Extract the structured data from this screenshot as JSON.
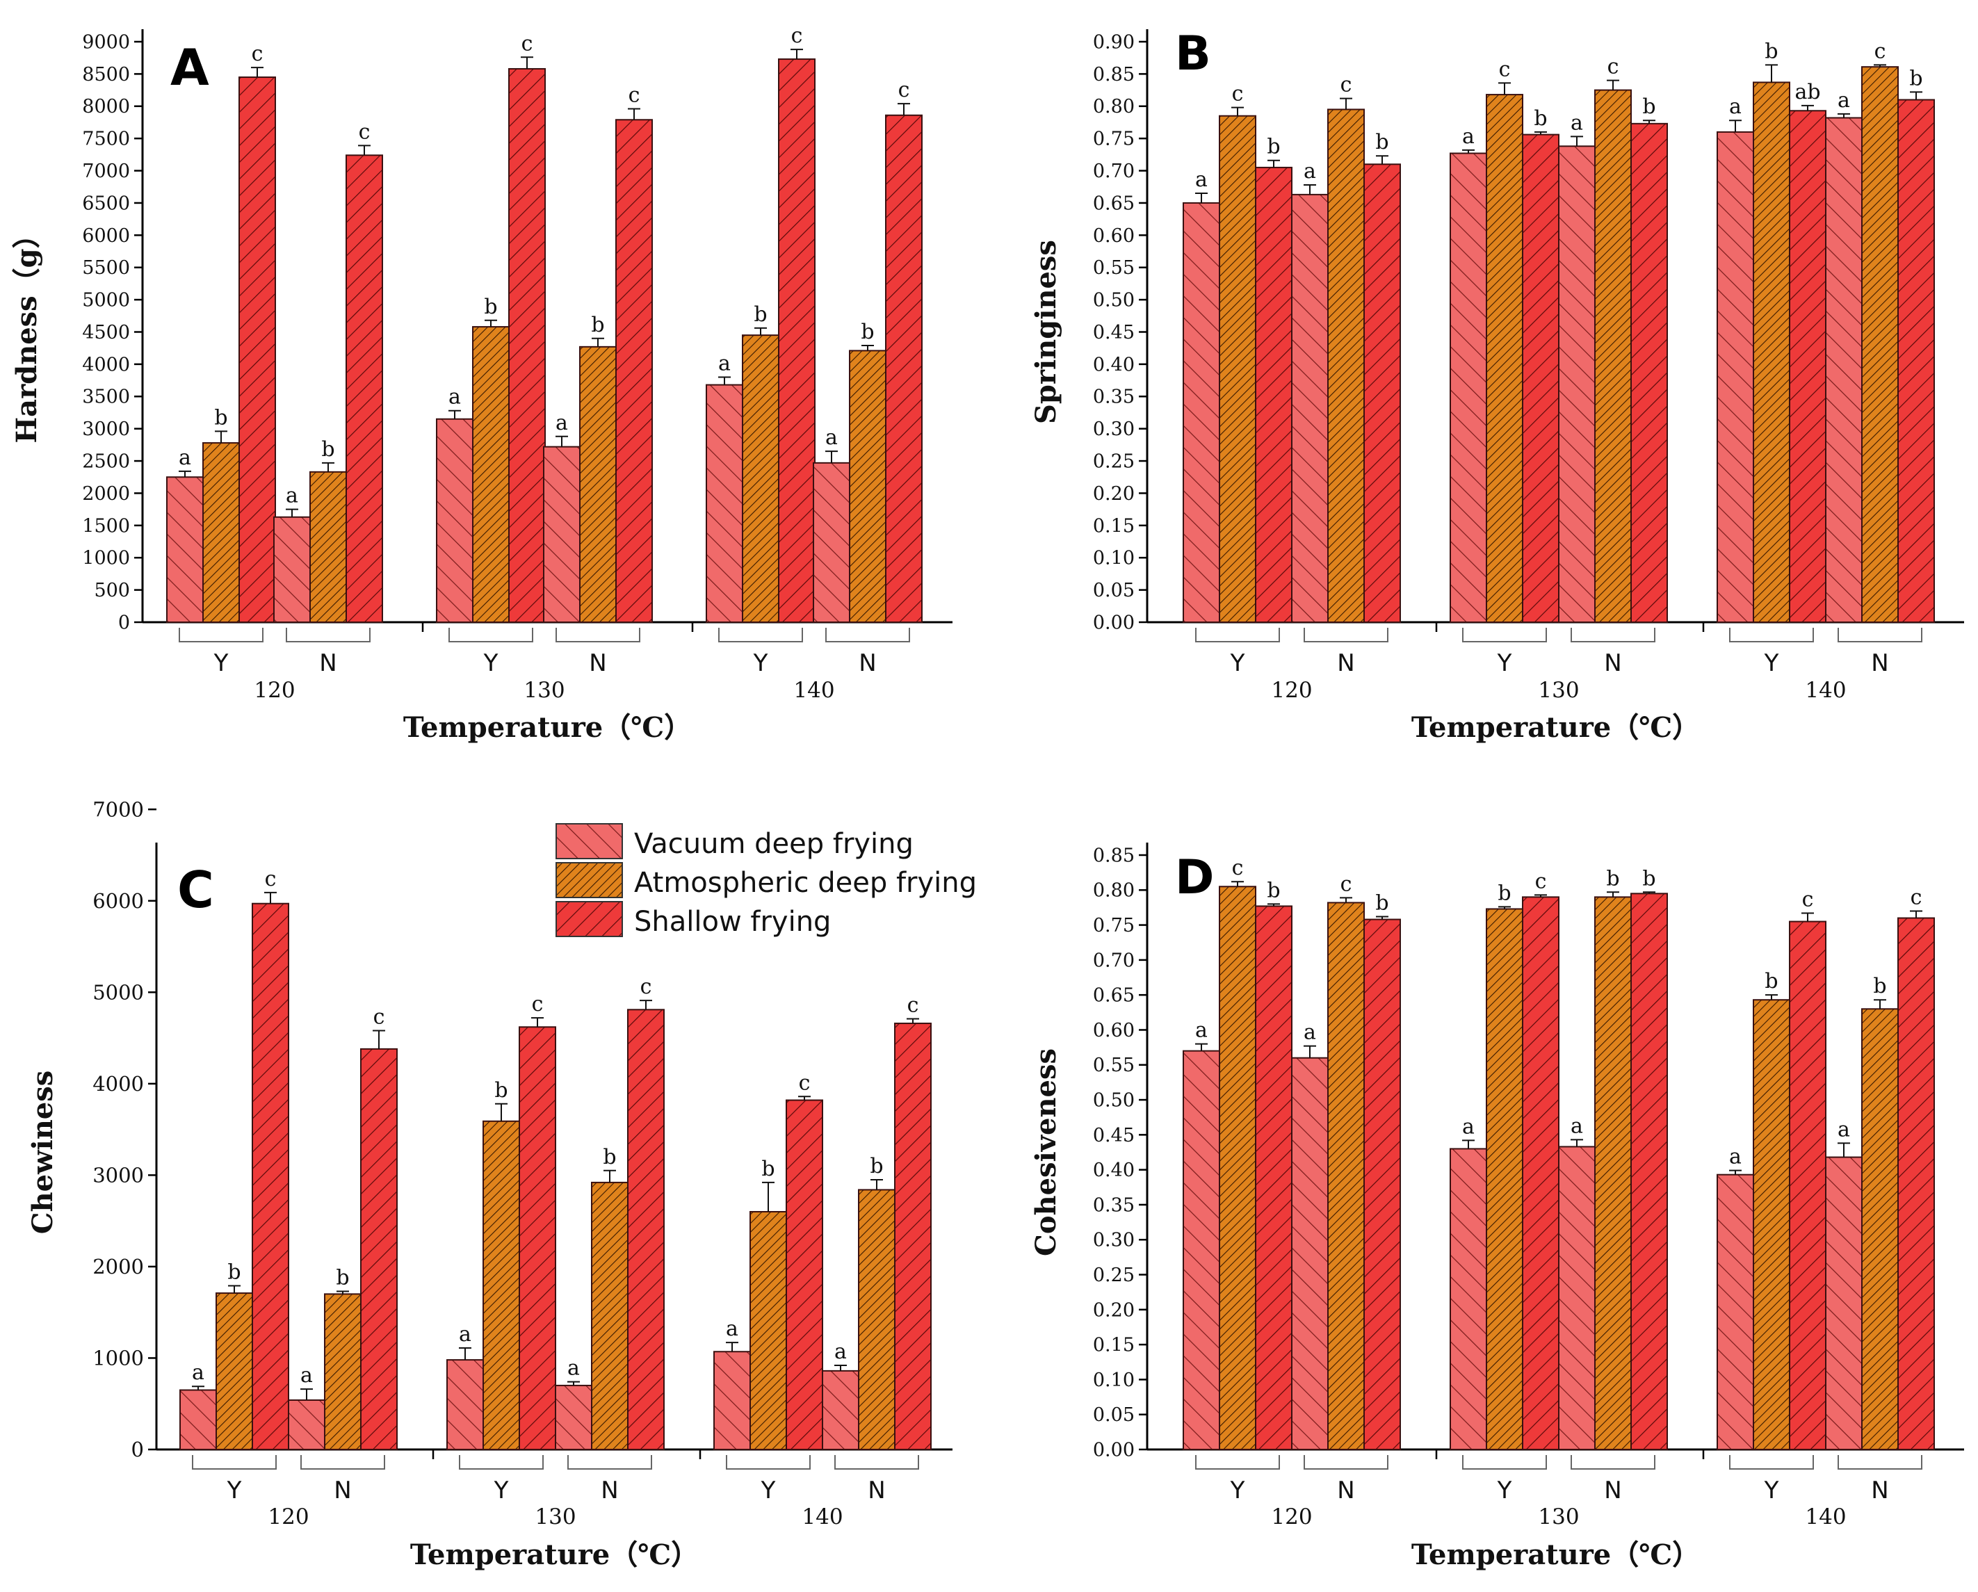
{
  "legend": {
    "items": [
      {
        "label": "Vacuum deep frying",
        "color": "#f06a6a",
        "pattern": "hatch-left"
      },
      {
        "label": "Atmospheric deep frying",
        "color": "#e0831c",
        "pattern": "hatch-dense"
      },
      {
        "label": "Shallow frying",
        "color": "#ee3a3a",
        "pattern": "hatch-right"
      }
    ]
  },
  "chart_data": [
    {
      "panel": "A",
      "type": "bar",
      "ylabel": "Hardness（g）",
      "xlabel": "Temperature（℃）",
      "ylim": [
        0,
        9000
      ],
      "ytick_step": 500,
      "ytick_decimals": 0,
      "temperatures": [
        "120",
        "130",
        "140"
      ],
      "groups": [
        "Y",
        "N"
      ],
      "series": [
        {
          "name": "Vacuum deep frying",
          "values": [
            2250,
            1630,
            3150,
            2720,
            3680,
            2470
          ],
          "errors": [
            90,
            120,
            130,
            160,
            120,
            180
          ],
          "letters": [
            "a",
            "a",
            "a",
            "a",
            "a",
            "a"
          ]
        },
        {
          "name": "Atmospheric deep frying",
          "values": [
            2780,
            2330,
            4580,
            4270,
            4450,
            4210
          ],
          "errors": [
            180,
            140,
            100,
            130,
            110,
            80
          ],
          "letters": [
            "b",
            "b",
            "b",
            "b",
            "b",
            "b"
          ]
        },
        {
          "name": "Shallow frying",
          "values": [
            8450,
            7240,
            8580,
            7790,
            8730,
            7860
          ],
          "errors": [
            150,
            150,
            180,
            170,
            150,
            180
          ],
          "letters": [
            "c",
            "c",
            "c",
            "c",
            "c",
            "c"
          ]
        }
      ]
    },
    {
      "panel": "B",
      "type": "bar",
      "ylabel": "Springiness",
      "xlabel": "Temperature（℃）",
      "ylim": [
        0,
        0.9
      ],
      "ytick_step": 0.05,
      "ytick_decimals": 2,
      "temperatures": [
        "120",
        "130",
        "140"
      ],
      "groups": [
        "Y",
        "N"
      ],
      "series": [
        {
          "name": "Vacuum deep frying",
          "values": [
            0.65,
            0.663,
            0.727,
            0.738,
            0.76,
            0.782
          ],
          "errors": [
            0.015,
            0.015,
            0.005,
            0.015,
            0.018,
            0.006
          ],
          "letters": [
            "a",
            "a",
            "a",
            "a",
            "a",
            "a"
          ]
        },
        {
          "name": "Atmospheric deep frying",
          "values": [
            0.785,
            0.795,
            0.818,
            0.825,
            0.837,
            0.861
          ],
          "errors": [
            0.013,
            0.017,
            0.018,
            0.015,
            0.027,
            0.003
          ],
          "letters": [
            "c",
            "c",
            "c",
            "c",
            "b",
            "c"
          ]
        },
        {
          "name": "Shallow frying",
          "values": [
            0.705,
            0.71,
            0.756,
            0.773,
            0.793,
            0.81
          ],
          "errors": [
            0.011,
            0.013,
            0.004,
            0.005,
            0.008,
            0.012
          ],
          "letters": [
            "b",
            "b",
            "b",
            "b",
            "ab",
            "b"
          ]
        }
      ]
    },
    {
      "panel": "C",
      "type": "bar",
      "ylabel": "Chewiness",
      "xlabel": "Temperature（℃）",
      "ylim": [
        0,
        6500
      ],
      "ytick_step": 1000,
      "ytick_decimals": 0,
      "temperatures": [
        "120",
        "130",
        "140"
      ],
      "groups": [
        "Y",
        "N"
      ],
      "series": [
        {
          "name": "Vacuum deep frying",
          "values": [
            650,
            540,
            980,
            700,
            1070,
            860
          ],
          "errors": [
            40,
            120,
            130,
            40,
            100,
            60
          ],
          "letters": [
            "a",
            "a",
            "a",
            "a",
            "a",
            "a"
          ]
        },
        {
          "name": "Atmospheric deep frying",
          "values": [
            1710,
            1700,
            3590,
            2920,
            2600,
            2840
          ],
          "errors": [
            80,
            30,
            190,
            130,
            320,
            110
          ],
          "letters": [
            "b",
            "b",
            "b",
            "b",
            "b",
            "b"
          ]
        },
        {
          "name": "Shallow frying",
          "values": [
            5970,
            4380,
            4620,
            4810,
            3820,
            4660
          ],
          "errors": [
            120,
            200,
            100,
            100,
            40,
            50
          ],
          "letters": [
            "c",
            "c",
            "c",
            "c",
            "c",
            "c"
          ]
        }
      ]
    },
    {
      "panel": "D",
      "type": "bar",
      "ylabel": "Cohesiveness",
      "xlabel": "Temperature（℃）",
      "ylim": [
        0,
        0.85
      ],
      "ytick_step": 0.05,
      "ytick_decimals": 2,
      "temperatures": [
        "120",
        "130",
        "140"
      ],
      "groups": [
        "Y",
        "N"
      ],
      "series": [
        {
          "name": "Vacuum deep frying",
          "values": [
            0.57,
            0.56,
            0.43,
            0.433,
            0.393,
            0.418
          ],
          "errors": [
            0.01,
            0.017,
            0.012,
            0.01,
            0.006,
            0.02
          ],
          "letters": [
            "a",
            "a",
            "a",
            "a",
            "a",
            "a"
          ]
        },
        {
          "name": "Atmospheric deep frying",
          "values": [
            0.805,
            0.782,
            0.773,
            0.79,
            0.643,
            0.63
          ],
          "errors": [
            0.007,
            0.007,
            0.003,
            0.007,
            0.007,
            0.013
          ],
          "letters": [
            "c",
            "c",
            "b",
            "b",
            "b",
            "b"
          ]
        },
        {
          "name": "Shallow frying",
          "values": [
            0.777,
            0.758,
            0.79,
            0.795,
            0.755,
            0.76
          ],
          "errors": [
            0.003,
            0.004,
            0.003,
            0.002,
            0.012,
            0.01
          ],
          "letters": [
            "b",
            "b",
            "c",
            "b",
            "c",
            "c"
          ]
        }
      ]
    }
  ]
}
